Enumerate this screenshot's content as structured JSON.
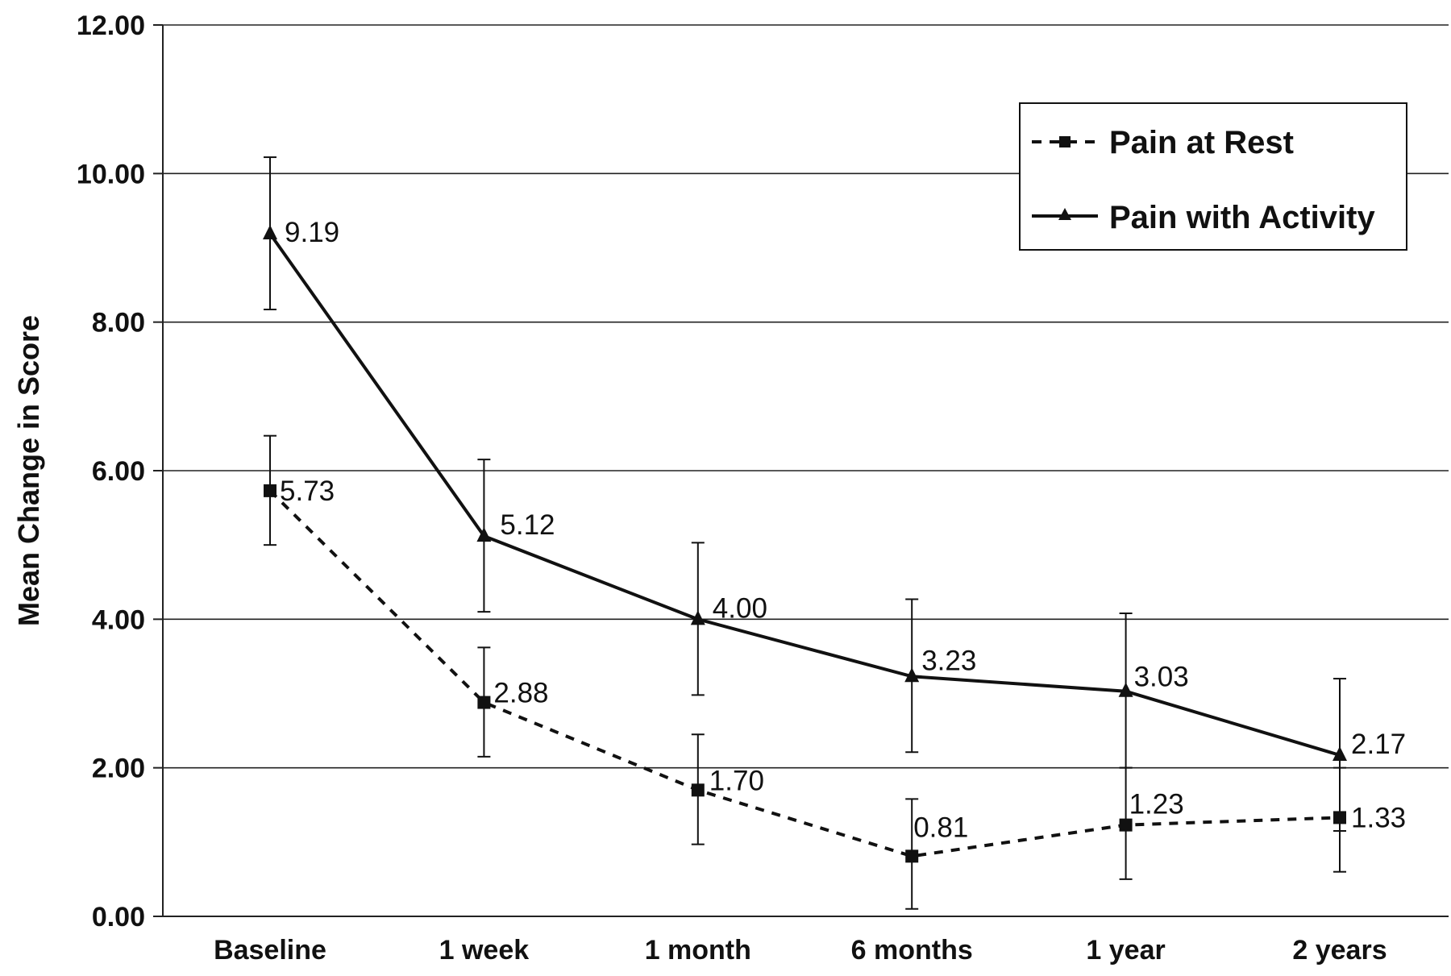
{
  "chart_data": {
    "type": "line",
    "title": "",
    "ylabel": "Mean Change in Score",
    "xlabel": "",
    "ylim": [
      0,
      12
    ],
    "yticks": [
      "0.00",
      "2.00",
      "4.00",
      "6.00",
      "8.00",
      "10.00",
      "12.00"
    ],
    "categories": [
      "Baseline",
      "1 week",
      "1 month",
      "6 months",
      "1 year",
      "2 years"
    ],
    "grid": "horizontal",
    "legend_position": "top-right",
    "series": [
      {
        "name": "Pain at Rest",
        "style": "dashed",
        "marker": "square",
        "color": "#111111",
        "values": [
          5.73,
          2.88,
          1.7,
          0.81,
          1.23,
          1.33
        ],
        "labels": [
          "5.73",
          "2.88",
          "1.70",
          "0.81",
          "1.23",
          "1.33"
        ],
        "error_low": [
          5.0,
          2.15,
          0.97,
          0.1,
          0.5,
          0.6
        ],
        "error_high": [
          6.47,
          3.62,
          2.45,
          1.58,
          2.0,
          2.0
        ]
      },
      {
        "name": "Pain with Activity",
        "style": "solid",
        "marker": "triangle",
        "color": "#111111",
        "values": [
          9.19,
          5.12,
          4.0,
          3.23,
          3.03,
          2.17
        ],
        "labels": [
          "9.19",
          "5.12",
          "4.00",
          "3.23",
          "3.03",
          "2.17"
        ],
        "error_low": [
          8.17,
          4.1,
          2.98,
          2.21,
          2.0,
          1.15
        ],
        "error_high": [
          10.22,
          6.15,
          5.03,
          4.27,
          4.08,
          3.2
        ]
      }
    ]
  }
}
